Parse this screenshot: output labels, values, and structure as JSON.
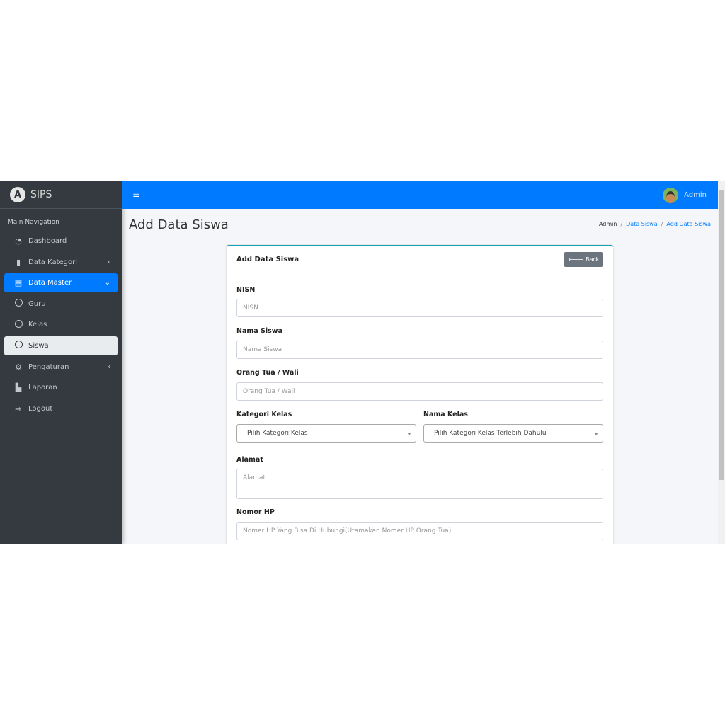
{
  "brand": {
    "name": "SIPS",
    "logo_letter": "A"
  },
  "sidebar": {
    "heading": "Main Navigation",
    "items": [
      {
        "label": "Dashboard",
        "icon": "tachometer-icon"
      },
      {
        "label": "Data Kategori",
        "icon": "book-icon"
      },
      {
        "label": "Data Master",
        "icon": "id-card-icon"
      },
      {
        "label": "Guru",
        "icon": "circle-icon"
      },
      {
        "label": "Kelas",
        "icon": "circle-icon"
      },
      {
        "label": "Siswa",
        "icon": "circle-icon"
      },
      {
        "label": "Pengaturan",
        "icon": "gear-icon"
      },
      {
        "label": "Laporan",
        "icon": "file-icon"
      },
      {
        "label": "Logout",
        "icon": "sign-out-icon"
      }
    ]
  },
  "topbar": {
    "user": "Admin"
  },
  "page": {
    "title": "Add Data Siswa",
    "breadcrumb": [
      "Admin",
      "Data Siswa",
      "Add Data Siswa"
    ]
  },
  "card": {
    "title": "Add Data Siswa",
    "back_label": "Back",
    "fields": {
      "nisn": {
        "label": "NISN",
        "placeholder": "NISN"
      },
      "nama": {
        "label": "Nama Siswa",
        "placeholder": "Nama Siswa"
      },
      "ortu": {
        "label": "Orang Tua / Wali",
        "placeholder": "Orang Tua / Wali"
      },
      "kategori": {
        "label": "Kategori Kelas",
        "value": "Pilih Kategori Kelas"
      },
      "kelas": {
        "label": "Nama Kelas",
        "value": "Pilih Kategori Kelas Terlebih Dahulu"
      },
      "alamat": {
        "label": "Alamat",
        "placeholder": "Alamat"
      },
      "hp": {
        "label": "Nomor HP",
        "placeholder": "Nomer HP Yang Bisa Di Hubungi(Utamakan Nomer HP Orang Tua)"
      }
    }
  },
  "colors": {
    "primary": "#007bff",
    "sidebar": "#343a40",
    "card_accent": "#17a2b8"
  }
}
